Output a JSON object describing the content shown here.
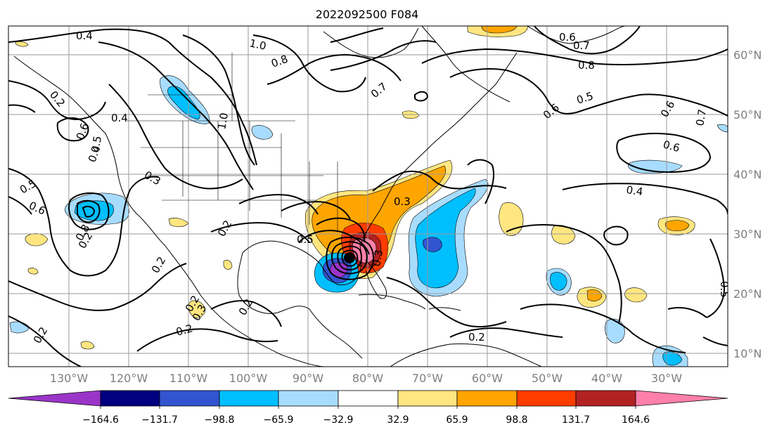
{
  "title": "2022092500 F084",
  "lon_labels": [
    "130°W",
    "120°W",
    "110°W",
    "100°W",
    "90°W",
    "80°W",
    "70°W",
    "60°W",
    "50°W",
    "40°W",
    "30°W"
  ],
  "lat_labels": [
    "60°N",
    "50°N",
    "40°N",
    "30°N",
    "20°N",
    "10°N"
  ],
  "colorbar": {
    "ticks": [
      "−164.6",
      "−131.7",
      "−98.8",
      "−65.9",
      "−32.9",
      "32.9",
      "65.9",
      "98.8",
      "131.7",
      "164.6"
    ],
    "colors": [
      "#9b35c9",
      "#000080",
      "#3354d0",
      "#00bfff",
      "#a8dcff",
      "#ffffff",
      "#ffe680",
      "#ffa500",
      "#ff3c00",
      "#b22222",
      "#ff80aa"
    ]
  },
  "contour_labels": [
    "0.4",
    "1.0",
    "0.6",
    "0.7",
    "0.8",
    "0.8",
    "0.7",
    "0.6",
    "0.5",
    "0.6",
    "0.7",
    "0.4",
    "1.0",
    "0.5",
    "0.6",
    "0.5",
    "0.6",
    "0.3",
    "0.6",
    "0.4",
    "0.5",
    "0.3",
    "0.2",
    "0.2",
    "0.8",
    "0.2",
    "0.2",
    "0.3",
    "0.2",
    "0.2",
    "0.2",
    "0.2",
    "0.5",
    "0.3",
    "0.4",
    "0.2"
  ],
  "storm_marker": "storm-center"
}
